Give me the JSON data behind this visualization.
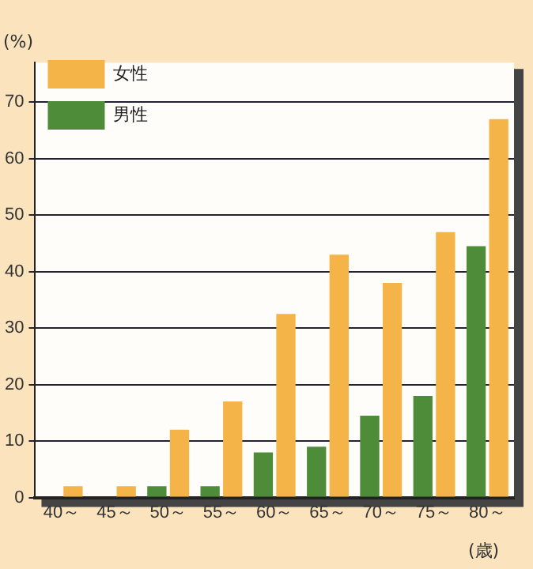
{
  "chart_data": {
    "type": "bar",
    "ylabel": "(%)",
    "xlabel": "(歳)",
    "categories": [
      "40～",
      "45～",
      "50～",
      "55～",
      "60～",
      "65～",
      "70～",
      "75～",
      "80～"
    ],
    "series": [
      {
        "name": "男性",
        "color": "#4f8c3a",
        "values": [
          0,
          0,
          2,
          2,
          8,
          9,
          14.5,
          18,
          44.5
        ]
      },
      {
        "name": "女性",
        "color": "#f4b447",
        "values": [
          2,
          2,
          12,
          17,
          32.5,
          43,
          38,
          47,
          67
        ]
      }
    ],
    "ylim": [
      0,
      77
    ],
    "yticks": [
      0,
      10,
      20,
      30,
      40,
      50,
      60,
      70
    ],
    "grid": "y",
    "legend": "top left"
  }
}
